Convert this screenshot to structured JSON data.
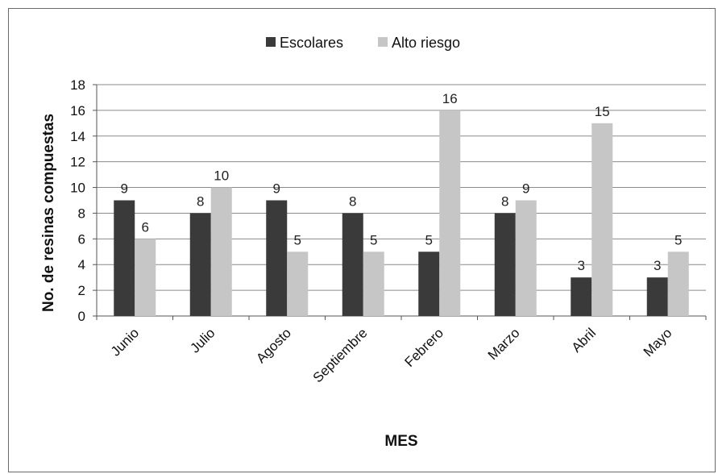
{
  "chart_data": {
    "type": "bar",
    "categories": [
      "Junio",
      "Julio",
      "Agosto",
      "Septiembre",
      "Febrero",
      "Marzo",
      "Abril",
      "Mayo"
    ],
    "series": [
      {
        "name": "Escolares",
        "values": [
          9,
          8,
          9,
          8,
          5,
          8,
          3,
          3
        ],
        "color": "#3a3a3a"
      },
      {
        "name": "Alto riesgo",
        "values": [
          6,
          10,
          5,
          5,
          16,
          9,
          15,
          5
        ],
        "color": "#c6c6c6"
      }
    ],
    "xlabel": "MES",
    "ylabel": "No. de resinas compuestas",
    "ylim": [
      0,
      18
    ],
    "yticks": [
      0,
      2,
      4,
      6,
      8,
      10,
      12,
      14,
      16,
      18
    ],
    "grid": true,
    "legend_position": "top-center"
  }
}
